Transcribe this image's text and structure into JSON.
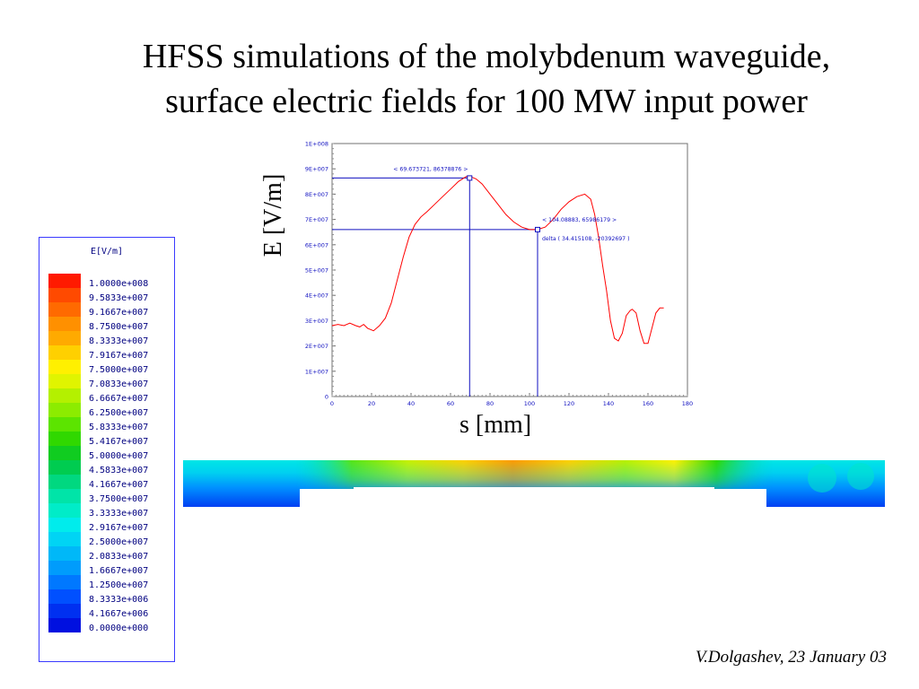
{
  "slide": {
    "title_line1": "HFSS simulations of the molybdenum waveguide,",
    "title_line2": "surface electric fields for 100 MW input power",
    "credit": "V.Dolgashev, 23 January 03"
  },
  "legend": {
    "title": "E[V/m]",
    "entries": [
      {
        "value": "1.0000e+008",
        "color": "#ff1a00"
      },
      {
        "value": "9.5833e+007",
        "color": "#ff4a00"
      },
      {
        "value": "9.1667e+007",
        "color": "#ff6a00"
      },
      {
        "value": "8.7500e+007",
        "color": "#ff9000"
      },
      {
        "value": "8.3333e+007",
        "color": "#ffaa00"
      },
      {
        "value": "7.9167e+007",
        "color": "#ffd000"
      },
      {
        "value": "7.5000e+007",
        "color": "#fff000"
      },
      {
        "value": "7.0833e+007",
        "color": "#e0f400"
      },
      {
        "value": "6.6667e+007",
        "color": "#b4f000"
      },
      {
        "value": "6.2500e+007",
        "color": "#8cec00"
      },
      {
        "value": "5.8333e+007",
        "color": "#5ce400"
      },
      {
        "value": "5.4167e+007",
        "color": "#30d800"
      },
      {
        "value": "5.0000e+007",
        "color": "#10cc20"
      },
      {
        "value": "4.5833e+007",
        "color": "#00cc50"
      },
      {
        "value": "4.1667e+007",
        "color": "#00d880"
      },
      {
        "value": "3.7500e+007",
        "color": "#00e4a8"
      },
      {
        "value": "3.3333e+007",
        "color": "#00ecc8"
      },
      {
        "value": "2.9167e+007",
        "color": "#00ecec"
      },
      {
        "value": "2.5000e+007",
        "color": "#00d4f4"
      },
      {
        "value": "2.0833e+007",
        "color": "#00b8f8"
      },
      {
        "value": "1.6667e+007",
        "color": "#009cfc"
      },
      {
        "value": "1.2500e+007",
        "color": "#0078ff"
      },
      {
        "value": "8.3333e+006",
        "color": "#0050ff"
      },
      {
        "value": "4.1667e+006",
        "color": "#0030f0"
      },
      {
        "value": "0.0000e+000",
        "color": "#0010e0"
      }
    ]
  },
  "chart_data": {
    "type": "line",
    "xlabel": "s [mm]",
    "ylabel": "E [V/m]",
    "xlim": [
      0,
      180
    ],
    "ylim": [
      0,
      100000000
    ],
    "x_ticks": [
      "0",
      "20",
      "40",
      "60",
      "80",
      "100",
      "120",
      "140",
      "160",
      "180"
    ],
    "y_ticks": [
      "0",
      "1E+007",
      "2E+007",
      "3E+007",
      "4E+007",
      "5E+007",
      "6E+007",
      "7E+007",
      "8E+007",
      "9E+007",
      "1E+008"
    ],
    "grid": false,
    "series": [
      {
        "color": "#ff0000",
        "x": [
          0,
          3,
          6,
          9,
          12,
          14,
          16,
          18,
          21,
          24,
          27,
          30,
          33,
          36,
          39,
          42,
          45,
          48,
          52,
          56,
          60,
          64,
          68,
          70,
          73,
          76,
          80,
          84,
          88,
          92,
          96,
          100,
          104,
          108,
          112,
          116,
          120,
          124,
          128,
          131,
          133,
          135,
          137,
          139,
          141,
          143,
          145,
          147,
          149,
          151,
          152,
          154,
          156,
          158,
          160,
          162,
          164,
          166,
          168
        ],
        "y": [
          28000000,
          28500000,
          28000000,
          29000000,
          28000000,
          27500000,
          28500000,
          27000000,
          26000000,
          28000000,
          31000000,
          37000000,
          46000000,
          55000000,
          63000000,
          68000000,
          71000000,
          73000000,
          76000000,
          79000000,
          82000000,
          85000000,
          87000000,
          87000000,
          86000000,
          84000000,
          80000000,
          76000000,
          72000000,
          69000000,
          67000000,
          66000000,
          66000000,
          67000000,
          70000000,
          74000000,
          77000000,
          79000000,
          80000000,
          78000000,
          72000000,
          63000000,
          52000000,
          42000000,
          30000000,
          23000000,
          22000000,
          25000000,
          32000000,
          34000000,
          34500000,
          33000000,
          26000000,
          21000000,
          21000000,
          27000000,
          33000000,
          35000000,
          35000000
        ]
      }
    ],
    "annotations": [
      {
        "label": "< 69.673721, 86378876 >",
        "x": 69.673721,
        "y": 86378876
      },
      {
        "label": "< 104.08883, 65986179 >",
        "x": 104.08883,
        "y": 65986179
      },
      {
        "label": "delta ( 34.415108, -20392697 )"
      }
    ]
  }
}
